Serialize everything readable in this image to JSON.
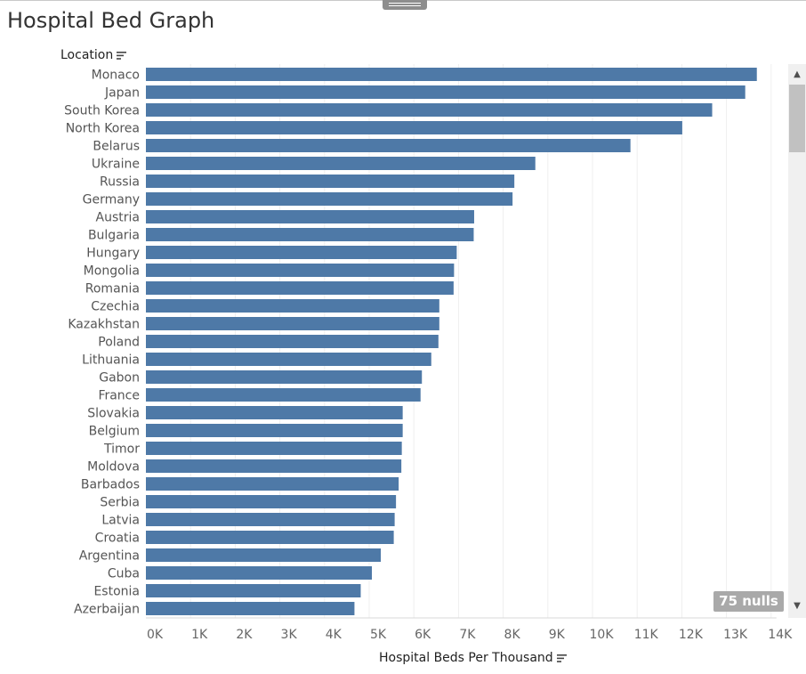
{
  "page": {
    "title": "Hospital Bed Graph"
  },
  "rows_header": {
    "label": "Location",
    "sort_icon": "sort-descending-icon"
  },
  "columns_header": {
    "label": "Hospital Beds Per Thousand",
    "sort_icon": "sort-descending-icon"
  },
  "nulls_badge": "75 nulls",
  "colors": {
    "bar": "#4e79a7",
    "gridline": "#efefef"
  },
  "chart_data": {
    "type": "bar",
    "orientation": "horizontal",
    "title": "Hospital Bed Graph",
    "xlabel": "Hospital Beds Per Thousand",
    "ylabel": "Location",
    "xlim": [
      0,
      14000
    ],
    "xticks": [
      "0K",
      "1K",
      "2K",
      "3K",
      "4K",
      "5K",
      "6K",
      "7K",
      "8K",
      "9K",
      "10K",
      "11K",
      "12K",
      "13K",
      "14K"
    ],
    "grid": true,
    "categories": [
      "Monaco",
      "Japan",
      "South Korea",
      "North Korea",
      "Belarus",
      "Ukraine",
      "Russia",
      "Germany",
      "Austria",
      "Bulgaria",
      "Hungary",
      "Mongolia",
      "Romania",
      "Czechia",
      "Kazakhstan",
      "Poland",
      "Lithuania",
      "Gabon",
      "France",
      "Slovakia",
      "Belgium",
      "Timor",
      "Moldova",
      "Barbados",
      "Serbia",
      "Latvia",
      "Croatia",
      "Argentina",
      "Cuba",
      "Estonia",
      "Azerbaijan"
    ],
    "values": [
      13680,
      13420,
      12680,
      12010,
      10850,
      8720,
      8250,
      8210,
      7350,
      7340,
      6960,
      6900,
      6890,
      6570,
      6570,
      6550,
      6390,
      6180,
      6150,
      5750,
      5750,
      5730,
      5720,
      5660,
      5600,
      5570,
      5550,
      5260,
      5060,
      4810,
      4670
    ]
  }
}
